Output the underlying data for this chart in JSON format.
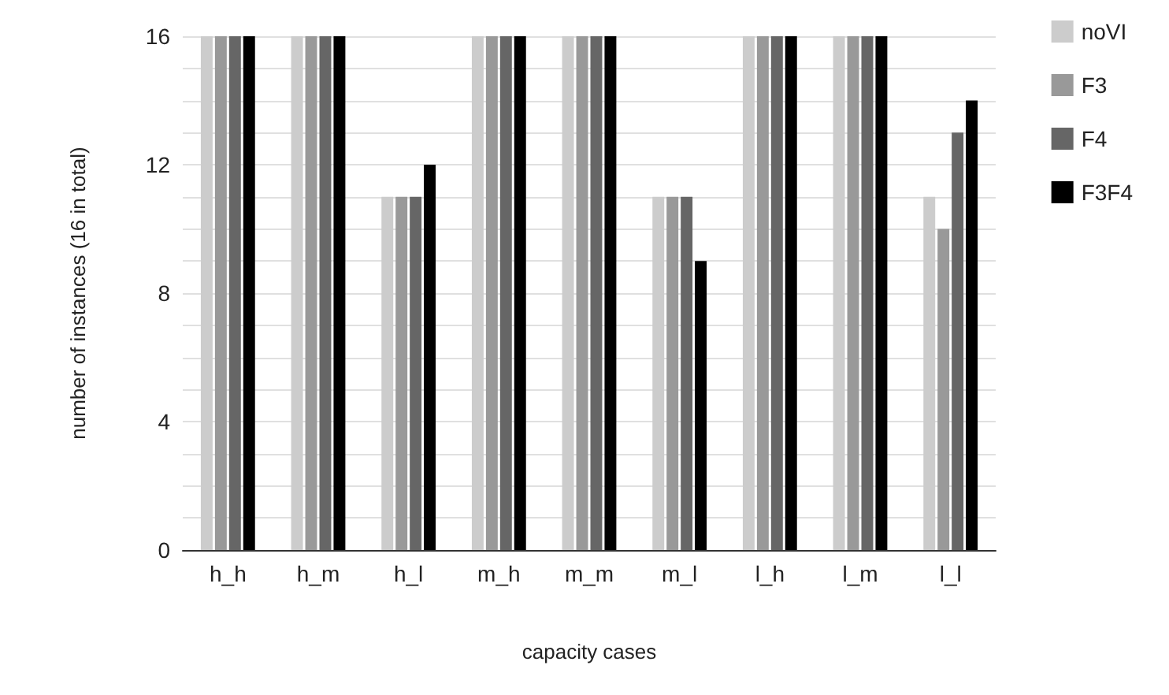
{
  "chart_data": {
    "type": "bar",
    "xlabel": "capacity cases",
    "ylabel": "number of instances (16 in total)",
    "categories": [
      "h_h",
      "h_m",
      "h_l",
      "m_h",
      "m_m",
      "m_l",
      "l_h",
      "l_m",
      "l_l"
    ],
    "series": [
      {
        "name": "noVI",
        "color": "#cccccc",
        "values": [
          16,
          16,
          11,
          16,
          16,
          11,
          16,
          16,
          11
        ]
      },
      {
        "name": "F3",
        "color": "#999999",
        "values": [
          16,
          16,
          11,
          16,
          16,
          11,
          16,
          16,
          10
        ]
      },
      {
        "name": "F4",
        "color": "#666666",
        "values": [
          16,
          16,
          11,
          16,
          16,
          11,
          16,
          16,
          13
        ]
      },
      {
        "name": "F3F4",
        "color": "#000000",
        "values": [
          16,
          16,
          12,
          16,
          16,
          9,
          16,
          16,
          14
        ]
      }
    ],
    "ylim": [
      0,
      16
    ],
    "yticks": [
      0,
      {
        "value": 1,
        "label": null
      },
      {
        "value": 2,
        "label": null
      },
      {
        "value": 3,
        "label": null
      },
      4,
      {
        "value": 5,
        "label": null
      },
      {
        "value": 6,
        "label": null
      },
      {
        "value": 7,
        "label": null
      },
      8,
      {
        "value": 9,
        "label": null
      },
      {
        "value": 10,
        "label": null
      },
      {
        "value": 11,
        "label": null
      },
      12,
      {
        "value": 13,
        "label": null
      },
      {
        "value": 14,
        "label": null
      },
      {
        "value": 15,
        "label": null
      },
      16
    ],
    "grid": true,
    "legend": "top right"
  }
}
